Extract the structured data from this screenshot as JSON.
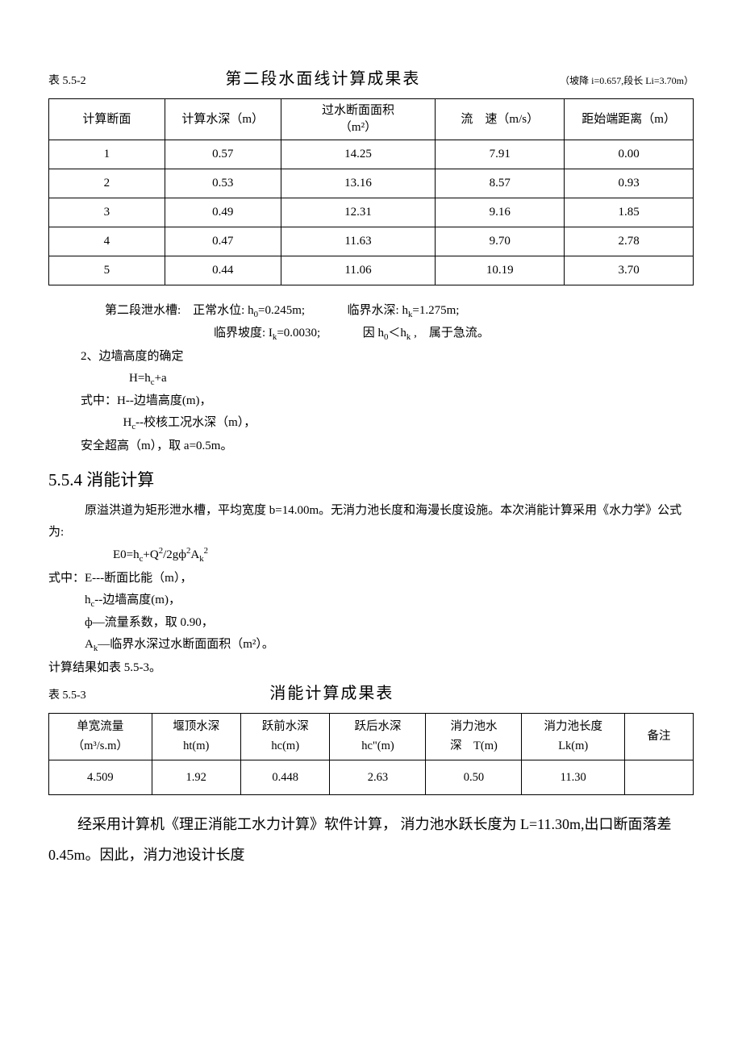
{
  "table1": {
    "number": "表 5.5-2",
    "title": "第二段水面线计算成果表",
    "note": "（坡降 i=0.657,段长 Li=3.70m）",
    "columns": [
      "计算断面",
      "计算水深（m）",
      "过水断面面积（m²）",
      "流　速（m/s）",
      "距始端距离（m）"
    ],
    "col_widths": [
      "18%",
      "18%",
      "24%",
      "20%",
      "20%"
    ],
    "rows": [
      [
        "1",
        "0.57",
        "14.25",
        "7.91",
        "0.00"
      ],
      [
        "2",
        "0.53",
        "13.16",
        "8.57",
        "0.93"
      ],
      [
        "3",
        "0.49",
        "12.31",
        "9.16",
        "1.85"
      ],
      [
        "4",
        "0.47",
        "11.63",
        "9.70",
        "2.78"
      ],
      [
        "5",
        "0.44",
        "11.06",
        "10.19",
        "3.70"
      ]
    ]
  },
  "p1_a": "第二段泄水槽:　正常水位: h",
  "p1_b": "=0.245m;",
  "p1_c": "临界水深: h",
  "p1_d": "=1.275m;",
  "p2_a": "临界坡度: I",
  "p2_b": "=0.0030;",
  "p2_c": "因 h",
  "p2_d": "＜h",
  "p2_e": " ,　属于急流。",
  "sub0": "0",
  "subk": "k",
  "subc": "c",
  "p3": "2、边墙高度的确定",
  "p4_a": "H=h",
  "p4_b": "+a",
  "p5": "式中：H--边墙高度(m)，",
  "p6_a": "H",
  "p6_b": "--校核工况水深（m），",
  "p7": "安全超高（m），取 a=0.5m。",
  "h1": "5.5.4 消能计算",
  "p8": "原溢洪道为矩形泄水槽，平均宽度 b=14.00m。无消力池长度和海漫长度设施。本次消能计算采用《水力学》公式为:",
  "f1_a": "E0=h",
  "f1_b": "+Q",
  "f1_c": "/2gф",
  "f1_d": "A",
  "sup2": "2",
  "p9": "式中：E---断面比能（m），",
  "p10_a": "h",
  "p10_b": "--边墙高度(m)，",
  "p11": "ф—流量系数，取 0.90，",
  "p12_a": "A",
  "p12_b": "—临界水深过水断面面积（m²）。",
  "p13": "计算结果如表 5.5-3。",
  "table2": {
    "number": "表 5.5-3",
    "title": "消能计算成果表",
    "columns_l1": [
      "单宽流量",
      "堰顶水深",
      "跃前水深",
      "跃后水深",
      "消力池水",
      "消力池长度",
      "备注"
    ],
    "columns_l2": [
      "（m³/s.m）",
      "ht(m)",
      "hc(m)",
      "hc\"(m)",
      "深　T(m)",
      "Lk(m)"
    ],
    "col_widths": [
      "15%",
      "13%",
      "13%",
      "14%",
      "14%",
      "15%",
      "10%"
    ],
    "rows": [
      [
        "4.509",
        "1.92",
        "0.448",
        "2.63",
        "0.50",
        "11.30",
        ""
      ]
    ]
  },
  "p14": "经采用计算机《理正消能工水力计算》软件计算， 消力池水跃长度为 L=11.30m,出口断面落差 0.45m。因此，消力池设计长度"
}
